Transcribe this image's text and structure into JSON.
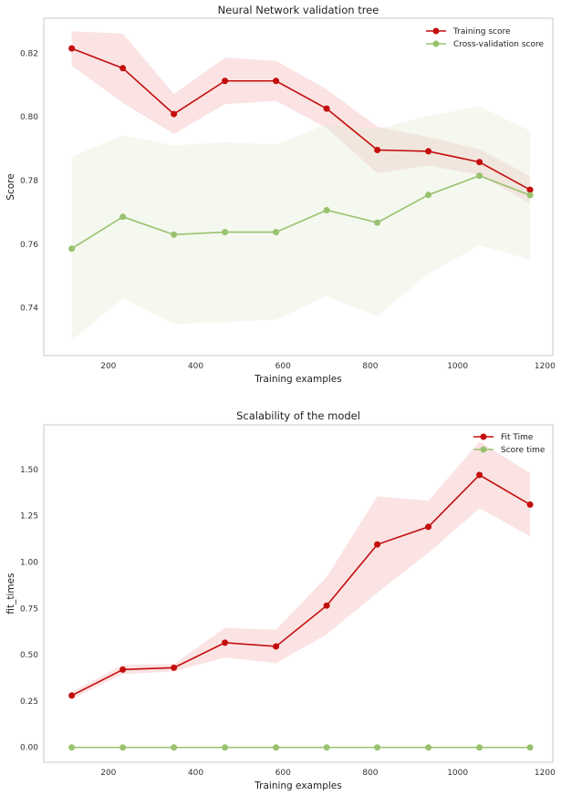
{
  "colors": {
    "training": "#c40d0d",
    "training_band": "#f5b5b5",
    "cv": "#99c26e",
    "cv_band": "#e3ecd5"
  },
  "chart_data": [
    {
      "type": "line",
      "title": "Neural Network validation tree",
      "xlabel": "Training examples",
      "ylabel": "Score",
      "xlim": [
        52,
        1218
      ],
      "ylim": [
        0.725,
        0.831
      ],
      "xticks": [
        200,
        400,
        600,
        800,
        1000,
        1200
      ],
      "yticks": [
        0.74,
        0.76,
        0.78,
        0.8,
        0.82
      ],
      "ytick_labels": [
        "0.74",
        "0.76",
        "0.78",
        "0.80",
        "0.82"
      ],
      "grid": false,
      "legend_position": "top-right",
      "x": [
        116,
        233,
        350,
        467,
        584,
        700,
        816,
        933,
        1050,
        1166
      ],
      "series": [
        {
          "name": "Training score",
          "color_key": "training",
          "values": [
            0.8215,
            0.8153,
            0.8009,
            0.8113,
            0.8113,
            0.8026,
            0.7896,
            0.7892,
            0.7858,
            0.7771
          ],
          "upper": [
            0.8269,
            0.8262,
            0.8072,
            0.8186,
            0.8176,
            0.8087,
            0.7969,
            0.7937,
            0.7898,
            0.7814
          ],
          "lower": [
            0.8161,
            0.8044,
            0.7946,
            0.804,
            0.805,
            0.7965,
            0.7823,
            0.7847,
            0.7818,
            0.7728
          ]
        },
        {
          "name": "Cross-validation score",
          "color_key": "cv",
          "values": [
            0.7586,
            0.7686,
            0.763,
            0.7638,
            0.7638,
            0.7707,
            0.7668,
            0.7755,
            0.7815,
            0.7754
          ],
          "upper": [
            0.7875,
            0.7942,
            0.791,
            0.7921,
            0.7913,
            0.7977,
            0.7962,
            0.8003,
            0.8033,
            0.7956
          ],
          "lower": [
            0.7298,
            0.743,
            0.735,
            0.7355,
            0.7363,
            0.7437,
            0.7374,
            0.7507,
            0.7597,
            0.7552
          ]
        }
      ]
    },
    {
      "type": "line",
      "title": "Scalability of the model",
      "xlabel": "Training examples",
      "ylabel": "fit_times",
      "xlim": [
        52,
        1218
      ],
      "ylim": [
        -0.08,
        1.74
      ],
      "xticks": [
        200,
        400,
        600,
        800,
        1000,
        1200
      ],
      "yticks": [
        0.0,
        0.25,
        0.5,
        0.75,
        1.0,
        1.25,
        1.5
      ],
      "ytick_labels": [
        "0.00",
        "0.25",
        "0.50",
        "0.75",
        "1.00",
        "1.25",
        "1.50"
      ],
      "grid": false,
      "legend_position": "top-right",
      "x": [
        116,
        233,
        350,
        467,
        584,
        700,
        816,
        933,
        1050,
        1166
      ],
      "series": [
        {
          "name": "Fit Time",
          "color_key": "training",
          "values": [
            0.28,
            0.42,
            0.43,
            0.565,
            0.545,
            0.765,
            1.095,
            1.19,
            1.47,
            1.31
          ],
          "upper": [
            0.3,
            0.445,
            0.45,
            0.645,
            0.635,
            0.92,
            1.355,
            1.33,
            1.65,
            1.48
          ],
          "lower": [
            0.26,
            0.395,
            0.41,
            0.485,
            0.455,
            0.61,
            0.835,
            1.05,
            1.29,
            1.14
          ]
        },
        {
          "name": "Score time",
          "color_key": "cv",
          "values": [
            0.0,
            0.0,
            0.0,
            0.0,
            0.0,
            0.0,
            0.0,
            0.0,
            0.0,
            0.0
          ],
          "upper": [
            0.0,
            0.0,
            0.0,
            0.0,
            0.0,
            0.0,
            0.0,
            0.0,
            0.0,
            0.0
          ],
          "lower": [
            0.0,
            0.0,
            0.0,
            0.0,
            0.0,
            0.0,
            0.0,
            0.0,
            0.0,
            0.0
          ]
        }
      ]
    }
  ]
}
